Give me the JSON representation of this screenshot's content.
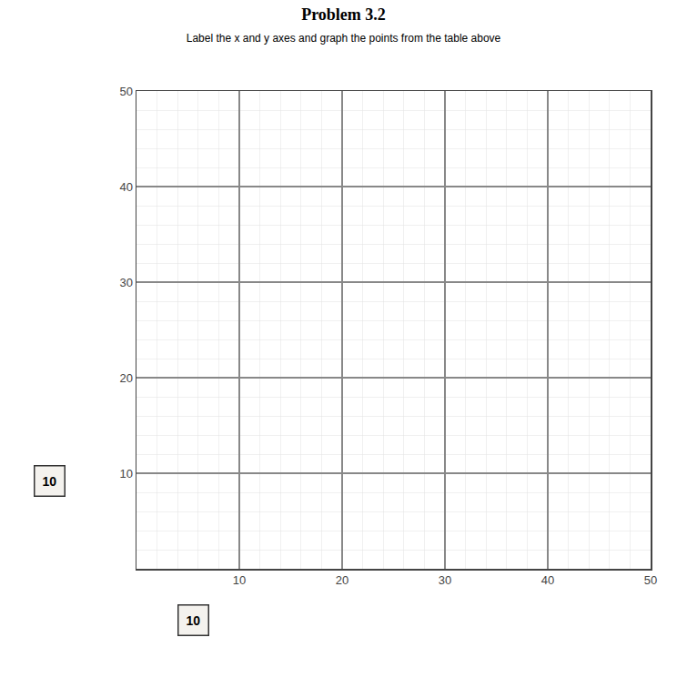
{
  "chart_data": {
    "type": "scatter",
    "title": "Problem 3.2",
    "subtitle": "Label the x and y axes and graph the points from the table above",
    "xlim": [
      0,
      50
    ],
    "ylim": [
      0,
      50
    ],
    "xticks": [
      10,
      20,
      30,
      40,
      50
    ],
    "yticks": [
      10,
      20,
      30,
      40,
      50
    ],
    "grid": true,
    "annotations": [
      "10",
      "10"
    ]
  }
}
